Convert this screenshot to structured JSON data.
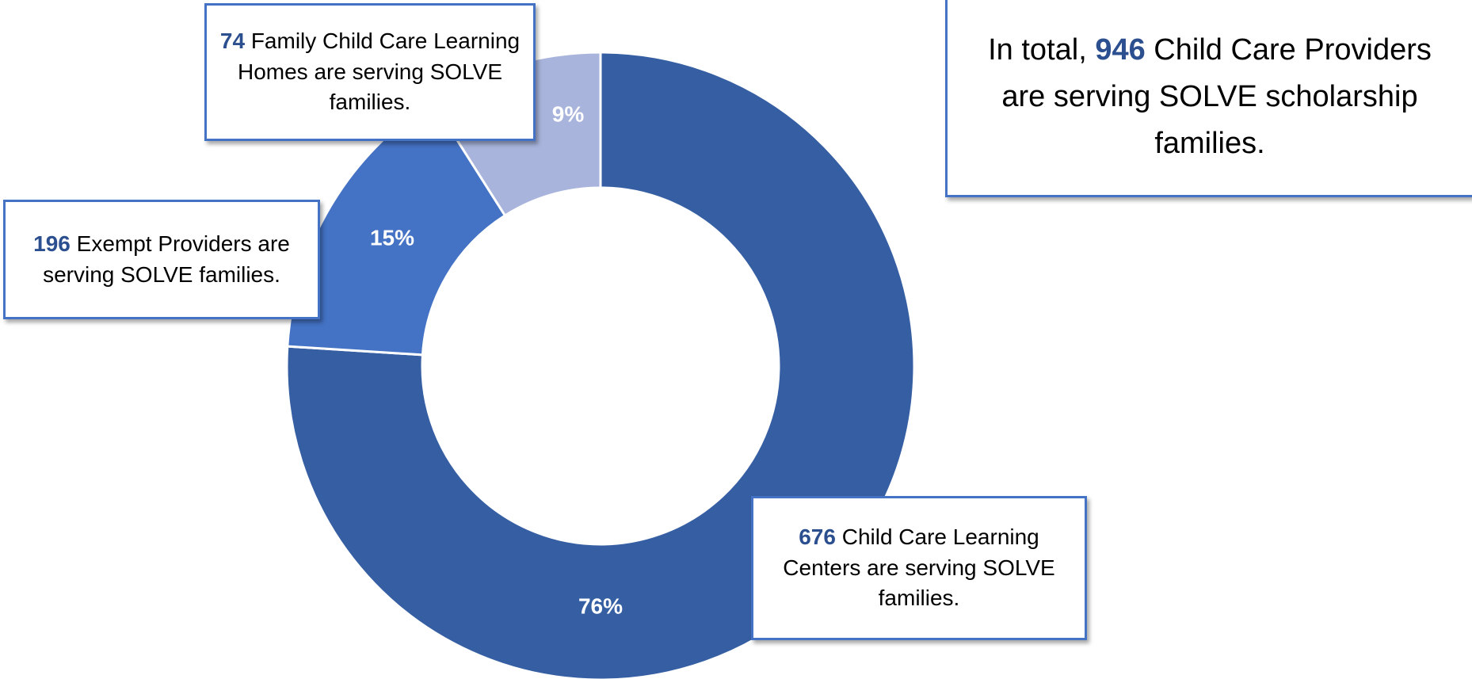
{
  "chart_data": {
    "type": "donut",
    "values": [
      76,
      15,
      9
    ],
    "value_labels": [
      "76%",
      "15%",
      "9%"
    ],
    "colors": [
      "#365fa3",
      "#4472c4",
      "#a8b4dc"
    ],
    "callouts": [
      {
        "count": 676,
        "text": "Child Care Learning Centers are serving SOLVE families."
      },
      {
        "count": 196,
        "text": "Exempt Providers are serving SOLVE families."
      },
      {
        "count": 74,
        "text": "Family Child Care Learning Homes are serving SOLVE families."
      }
    ],
    "total": {
      "prefix": "In total,",
      "count": 946,
      "text": "Child Care Providers are serving SOLVE scholarship families."
    }
  }
}
